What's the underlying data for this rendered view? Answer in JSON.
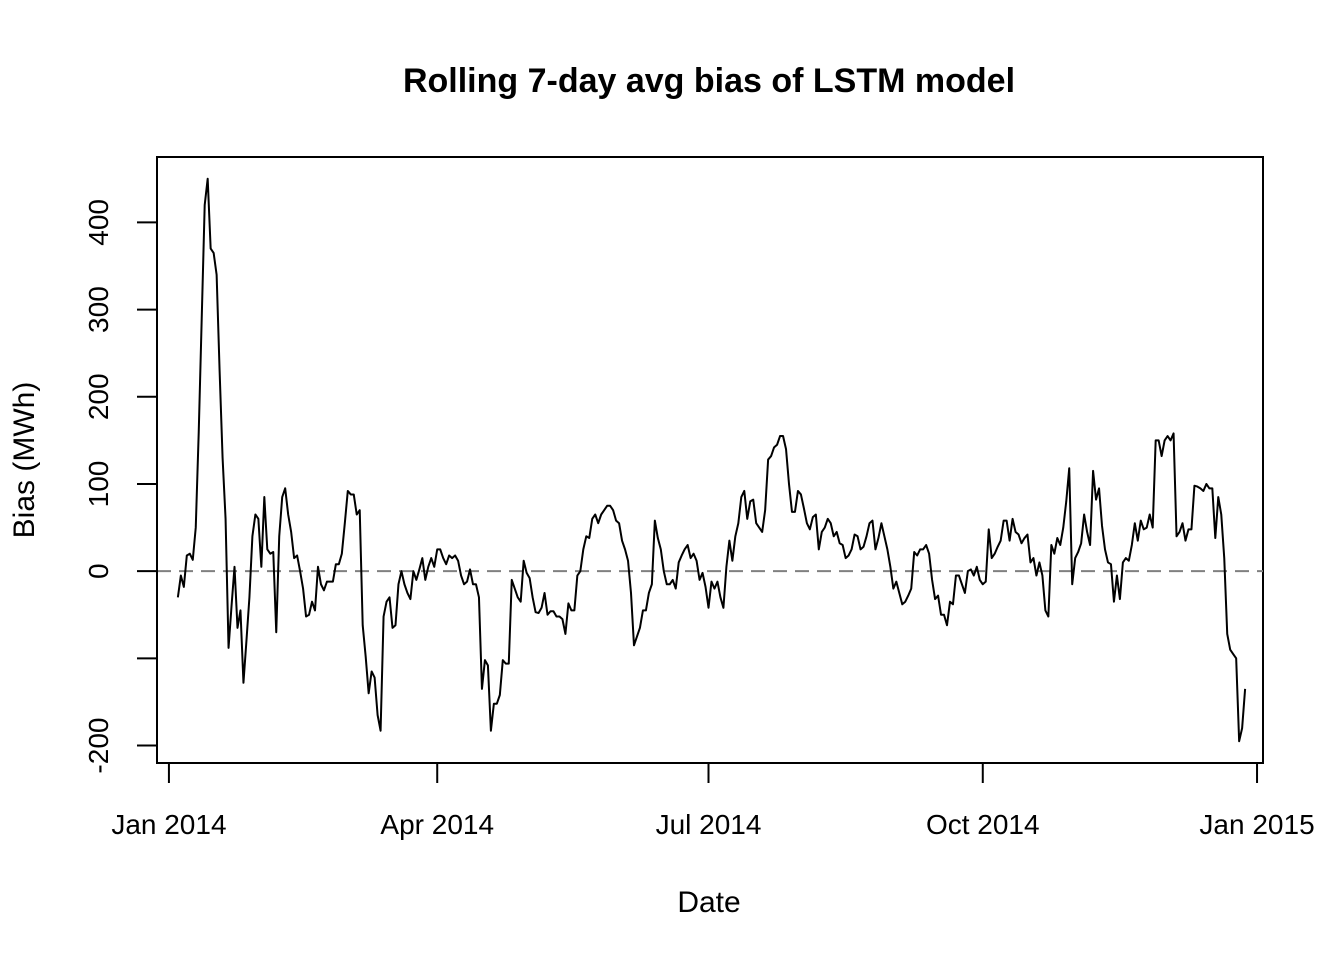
{
  "chart_data": {
    "type": "line",
    "title": "Rolling 7-day avg bias of LSTM model",
    "xlabel": "Date",
    "ylabel": "Bias (MWh)",
    "xlim_days": [
      -4,
      367
    ],
    "ylim": [
      -220,
      475
    ],
    "x_ticks": [
      {
        "day": 0,
        "label": "Jan 2014"
      },
      {
        "day": 90,
        "label": "Apr 2014"
      },
      {
        "day": 181,
        "label": "Jul 2014"
      },
      {
        "day": 273,
        "label": "Oct 2014"
      },
      {
        "day": 365,
        "label": "Jan 2015"
      }
    ],
    "y_ticks": [
      {
        "value": -200,
        "label": "-200"
      },
      {
        "value": -100,
        "label": ""
      },
      {
        "value": 0,
        "label": "0"
      },
      {
        "value": 100,
        "label": "100"
      },
      {
        "value": 200,
        "label": "200"
      },
      {
        "value": 300,
        "label": "300"
      },
      {
        "value": 400,
        "label": "400"
      }
    ],
    "reference_line": {
      "value": 0,
      "style": "dashed",
      "color": "#808080"
    },
    "series": [
      {
        "name": "Rolling 7-day avg bias",
        "color": "#000000",
        "start_day": 3,
        "values": [
          -30,
          -5,
          -18,
          18,
          20,
          13,
          50,
          160,
          290,
          420,
          450,
          370,
          365,
          340,
          230,
          130,
          60,
          -88,
          -40,
          5,
          -65,
          -45,
          -128,
          -80,
          -30,
          40,
          65,
          60,
          5,
          85,
          25,
          20,
          22,
          -70,
          40,
          85,
          95,
          65,
          45,
          15,
          18,
          0,
          -20,
          -52,
          -50,
          -35,
          -45,
          5,
          -15,
          -22,
          -12,
          -12,
          -12,
          8,
          8,
          20,
          55,
          92,
          88,
          88,
          65,
          70,
          -62,
          -98,
          -140,
          -115,
          -122,
          -165,
          -183,
          -52,
          -35,
          -30,
          -65,
          -62,
          -15,
          0,
          -15,
          -25,
          -32,
          0,
          -10,
          2,
          15,
          -10,
          5,
          15,
          5,
          25,
          25,
          15,
          8,
          18,
          15,
          18,
          12,
          -5,
          -15,
          -12,
          2,
          -15,
          -15,
          -30,
          -135,
          -102,
          -108,
          -183,
          -152,
          -152,
          -142,
          -102,
          -106,
          -106,
          -10,
          -20,
          -30,
          -35,
          12,
          -2,
          -8,
          -30,
          -47,
          -48,
          -42,
          -25,
          -50,
          -46,
          -46,
          -52,
          -52,
          -55,
          -72,
          -37,
          -45,
          -45,
          -5,
          0,
          25,
          40,
          38,
          60,
          65,
          55,
          65,
          70,
          75,
          75,
          70,
          58,
          55,
          35,
          25,
          12,
          -25,
          -85,
          -75,
          -65,
          -45,
          -45,
          -25,
          -15,
          58,
          38,
          25,
          0,
          -15,
          -15,
          -10,
          -20,
          10,
          18,
          25,
          30,
          15,
          20,
          12,
          -10,
          -2,
          -18,
          -42,
          -12,
          -20,
          -12,
          -30,
          -42,
          5,
          35,
          12,
          40,
          55,
          85,
          92,
          60,
          80,
          82,
          55,
          50,
          45,
          70,
          128,
          132,
          142,
          145,
          155,
          155,
          140,
          100,
          68,
          68,
          92,
          88,
          72,
          55,
          48,
          62,
          65,
          25,
          45,
          50,
          60,
          55,
          40,
          45,
          32,
          30,
          15,
          18,
          25,
          42,
          40,
          25,
          28,
          40,
          55,
          58,
          25,
          38,
          55,
          40,
          25,
          5,
          -20,
          -12,
          -25,
          -38,
          -35,
          -28,
          -20,
          22,
          18,
          25,
          25,
          30,
          20,
          -10,
          -32,
          -28,
          -50,
          -50,
          -62,
          -35,
          -38,
          -5,
          -5,
          -15,
          -25,
          0,
          2,
          -5,
          5,
          -10,
          -15,
          -12,
          48,
          15,
          20,
          28,
          35,
          58,
          58,
          35,
          60,
          45,
          42,
          32,
          38,
          42,
          10,
          15,
          -5,
          10,
          -5,
          -45,
          -52,
          30,
          20,
          38,
          30,
          50,
          80,
          118,
          -15,
          15,
          22,
          32,
          65,
          45,
          30,
          115,
          82,
          95,
          52,
          25,
          10,
          8,
          -35,
          -5,
          -32,
          10,
          15,
          12,
          30,
          55,
          35,
          58,
          48,
          50,
          65,
          50,
          150,
          150,
          132,
          150,
          155,
          150,
          158,
          40,
          45,
          55,
          35,
          48,
          48,
          98,
          97,
          95,
          92,
          100,
          95,
          95,
          38,
          85,
          65,
          15,
          -72,
          -90,
          -95,
          -100,
          -195,
          -180,
          -135
        ]
      }
    ]
  }
}
